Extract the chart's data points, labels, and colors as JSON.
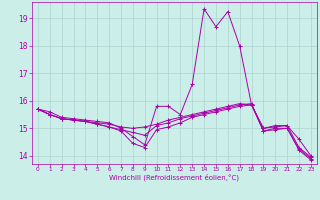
{
  "xlabel": "Windchill (Refroidissement éolien,°C)",
  "bg_color": "#cceee8",
  "grid_color": "#aad4ce",
  "line_color": "#aa00aa",
  "xlim": [
    -0.5,
    23.5
  ],
  "ylim": [
    13.7,
    19.6
  ],
  "yticks": [
    14,
    15,
    16,
    17,
    18,
    19
  ],
  "xticks": [
    0,
    1,
    2,
    3,
    4,
    5,
    6,
    7,
    8,
    9,
    10,
    11,
    12,
    13,
    14,
    15,
    16,
    17,
    18,
    19,
    20,
    21,
    22,
    23
  ],
  "series": [
    [
      15.7,
      15.6,
      15.4,
      15.35,
      15.3,
      15.25,
      15.2,
      15.0,
      14.7,
      14.4,
      15.8,
      15.8,
      15.5,
      16.6,
      19.35,
      18.7,
      19.25,
      18.0,
      15.85,
      15.0,
      15.1,
      15.1,
      14.6,
      14.0
    ],
    [
      15.7,
      15.5,
      15.35,
      15.3,
      15.25,
      15.2,
      15.15,
      15.05,
      15.0,
      15.05,
      15.15,
      15.3,
      15.4,
      15.5,
      15.6,
      15.7,
      15.8,
      15.9,
      15.85,
      15.0,
      15.05,
      15.1,
      14.3,
      13.95
    ],
    [
      15.7,
      15.5,
      15.35,
      15.3,
      15.25,
      15.15,
      15.05,
      14.95,
      14.85,
      14.75,
      15.1,
      15.2,
      15.35,
      15.45,
      15.55,
      15.65,
      15.75,
      15.85,
      15.9,
      14.9,
      15.0,
      15.0,
      14.25,
      13.9
    ],
    [
      15.7,
      15.5,
      15.35,
      15.3,
      15.25,
      15.15,
      15.05,
      14.9,
      14.45,
      14.3,
      14.95,
      15.05,
      15.2,
      15.4,
      15.5,
      15.6,
      15.7,
      15.8,
      15.85,
      14.9,
      14.95,
      15.0,
      14.2,
      13.85
    ]
  ]
}
